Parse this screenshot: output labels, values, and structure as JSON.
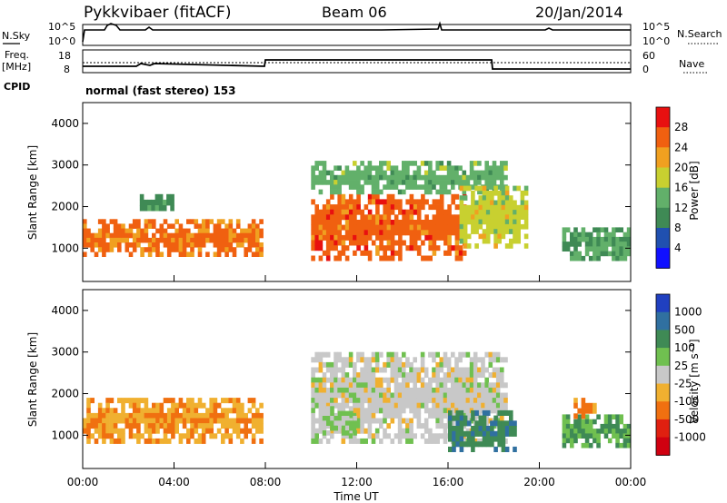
{
  "header": {
    "title": "Pykkvibaer (fitACF)",
    "beam": "Beam 06",
    "date": "20/Jan/2014"
  },
  "nsky_panel": {
    "left_label": "N.Sky",
    "right_label": "N.Search",
    "left_ticks": [
      "10^5",
      "10^0"
    ],
    "right_ticks": [
      "10^5",
      "10^0"
    ]
  },
  "freq_panel": {
    "left_label_1": "Freq.",
    "left_label_2": "[MHz]",
    "right_label": "Nave",
    "left_ticks": [
      "18",
      "8"
    ],
    "right_ticks": [
      "60",
      "0"
    ]
  },
  "cpid": {
    "label": "CPID",
    "mode_text": "normal (fast stereo) 153"
  },
  "power_panel": {
    "ylabel": "Slant Range [km]",
    "yticks": [
      "4000",
      "3000",
      "2000",
      "1000"
    ],
    "colorbar_label": "Power [dB]",
    "colorbar_ticks": [
      "28",
      "24",
      "20",
      "16",
      "12",
      "8",
      "4"
    ],
    "colorbar_colors": [
      "#1010ff",
      "#2050b0",
      "#3f8a55",
      "#62b06a",
      "#c8d030",
      "#f0a020",
      "#f06010",
      "#e81010"
    ]
  },
  "velocity_panel": {
    "ylabel": "Slant Range [km]",
    "yticks": [
      "4000",
      "3000",
      "2000",
      "1000"
    ],
    "colorbar_label": "Velocity [m s⁻¹]",
    "colorbar_ticks": [
      "1000",
      "500",
      "100",
      "25",
      "-25",
      "-100",
      "-500",
      "-1000"
    ],
    "colorbar_colors": [
      "#2040c0",
      "#3070a0",
      "#3f8a55",
      "#70c050",
      "#c8c8c8",
      "#f0b030",
      "#f07010",
      "#e02010",
      "#d00010"
    ]
  },
  "xaxis": {
    "ticks": [
      "00:00",
      "04:00",
      "08:00",
      "12:00",
      "16:00",
      "20:00",
      "00:00"
    ],
    "label": "Time UT"
  },
  "chart_data": [
    {
      "type": "heatmap",
      "title": "Pykkvibaer (fitACF)",
      "xlabel": "Time UT",
      "ylabel": "Slant Range [km]",
      "xlim": [
        0,
        24
      ],
      "ylim": [
        200,
        4500
      ],
      "colorbar_label": "Power [dB]",
      "color_range": [
        0,
        32
      ],
      "regions": [
        {
          "t0": 0.0,
          "t1": 7.9,
          "r0": 800,
          "r1": 1700,
          "value": 25
        },
        {
          "t0": 2.5,
          "t1": 4.0,
          "r0": 1900,
          "r1": 2300,
          "value": 10
        },
        {
          "t0": 10.0,
          "t1": 16.8,
          "r0": 700,
          "r1": 2300,
          "value": 26
        },
        {
          "t0": 10.0,
          "t1": 18.6,
          "r0": 2300,
          "r1": 3100,
          "value": 14
        },
        {
          "t0": 16.5,
          "t1": 19.5,
          "r0": 1000,
          "r1": 2500,
          "value": 18
        },
        {
          "t0": 21.0,
          "t1": 24.0,
          "r0": 700,
          "r1": 1500,
          "value": 12
        }
      ]
    },
    {
      "type": "heatmap",
      "xlabel": "Time UT",
      "ylabel": "Slant Range [km]",
      "xlim": [
        0,
        24
      ],
      "ylim": [
        200,
        4500
      ],
      "colorbar_label": "Velocity [m s⁻¹]",
      "color_range": [
        -1000,
        1000
      ],
      "regions": [
        {
          "t0": 0.0,
          "t1": 7.9,
          "r0": 800,
          "r1": 1900,
          "value": -300
        },
        {
          "t0": 10.0,
          "t1": 18.6,
          "r0": 800,
          "r1": 3000,
          "value": 0
        },
        {
          "t0": 10.5,
          "t1": 12.0,
          "r0": 1000,
          "r1": 1700,
          "value": 120
        },
        {
          "t0": 16.0,
          "t1": 19.0,
          "r0": 600,
          "r1": 1600,
          "value": 500
        },
        {
          "t0": 21.0,
          "t1": 24.0,
          "r0": 700,
          "r1": 1500,
          "value": 350
        },
        {
          "t0": 21.5,
          "t1": 22.5,
          "r0": 1400,
          "r1": 1900,
          "value": -400
        }
      ]
    }
  ]
}
